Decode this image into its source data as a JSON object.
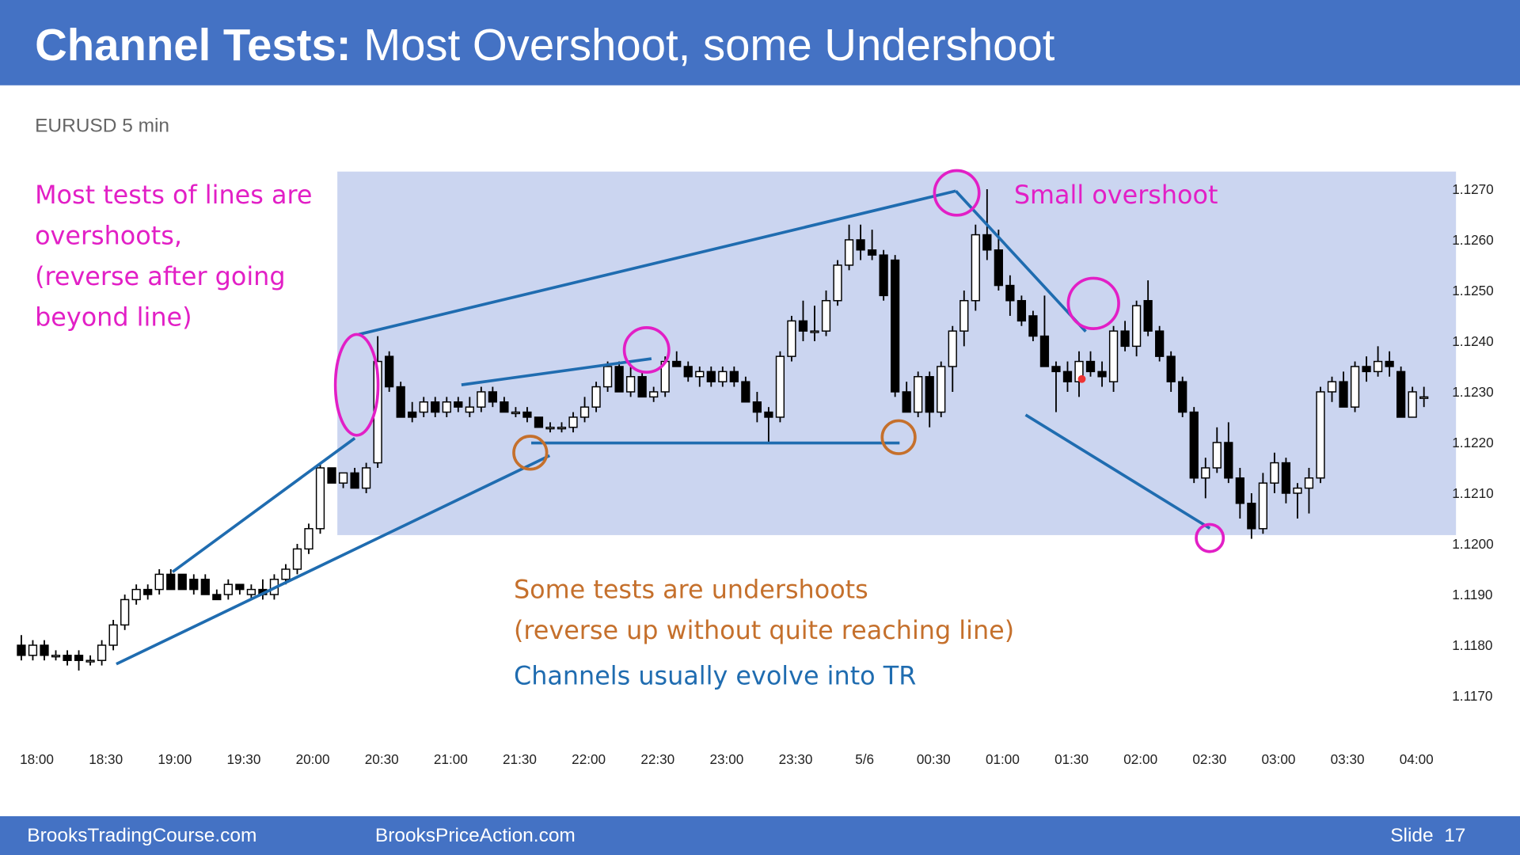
{
  "slide": {
    "title_bold": "Channel Tests:",
    "title_rest": "Most Overshoot, some Undershoot",
    "footer_left": "BrooksTradingCourse.com",
    "footer_mid": "BrooksPriceAction.com",
    "slide_label": "Slide  17"
  },
  "chart_data": {
    "type": "candlestick",
    "subtitle": "EURUSD 5 min",
    "annotations": [
      "Most tests of lines are",
      "overshoots,",
      "(reverse after going",
      "beyond line)",
      "Small overshoot",
      "Some tests are undershoots",
      "(reverse up without quite reaching line)",
      "Channels usually evolve into TR"
    ],
    "up_color": "#ffffff",
    "down_color": "#000000",
    "grid": false,
    "ylim": [
      1.1165,
      1.1275
    ],
    "yticks": [
      {
        "value": 1.117,
        "label": "1.1170"
      },
      {
        "value": 1.118,
        "label": "1.1180"
      },
      {
        "value": 1.119,
        "label": "1.1190"
      },
      {
        "value": 1.12,
        "label": "1.1200"
      },
      {
        "value": 1.121,
        "label": "1.1210"
      },
      {
        "value": 1.122,
        "label": "1.1220"
      },
      {
        "value": 1.123,
        "label": "1.1230"
      },
      {
        "value": 1.124,
        "label": "1.1240"
      },
      {
        "value": 1.125,
        "label": "1.1250"
      },
      {
        "value": 1.126,
        "label": "1.1260"
      },
      {
        "value": 1.127,
        "label": "1.1270"
      }
    ],
    "x": [
      "18:00",
      null,
      null,
      null,
      null,
      null,
      "18:30",
      null,
      null,
      null,
      null,
      null,
      "19:00",
      null,
      null,
      null,
      null,
      null,
      "19:30",
      null,
      null,
      null,
      null,
      null,
      "20:00",
      null,
      null,
      null,
      null,
      null,
      "20:30",
      null,
      null,
      null,
      null,
      null,
      "21:00",
      null,
      null,
      null,
      null,
      null,
      "21:30",
      null,
      null,
      null,
      null,
      null,
      "22:00",
      null,
      null,
      null,
      null,
      null,
      "22:30",
      null,
      null,
      null,
      null,
      null,
      "23:00",
      null,
      null,
      null,
      null,
      null,
      "23:30",
      null,
      null,
      null,
      null,
      null,
      "5/6",
      null,
      null,
      null,
      null,
      null,
      "00:30",
      null,
      null,
      null,
      null,
      null,
      "01:00",
      null,
      null,
      null,
      null,
      null,
      "01:30",
      null,
      null,
      null,
      null,
      null,
      "02:00",
      null,
      null,
      null,
      null,
      null,
      "02:30",
      null,
      null,
      null,
      null,
      null,
      "03:00",
      null,
      null,
      null,
      null,
      null,
      "03:30",
      null,
      null,
      null,
      null,
      null,
      "04:00",
      null,
      null
    ],
    "ohlc": [
      [
        1.118,
        1.1182,
        1.1177,
        1.1178
      ],
      [
        1.1178,
        1.1181,
        1.1177,
        1.118
      ],
      [
        1.118,
        1.1181,
        1.1177,
        1.1178
      ],
      [
        1.1178,
        1.1179,
        1.1177,
        1.1178
      ],
      [
        1.1178,
        1.1179,
        1.1176,
        1.1177
      ],
      [
        1.1178,
        1.1179,
        1.1175,
        1.1177
      ],
      [
        1.1177,
        1.1178,
        1.1176,
        1.1177
      ],
      [
        1.1177,
        1.1181,
        1.1176,
        1.118
      ],
      [
        1.118,
        1.1185,
        1.1179,
        1.1184
      ],
      [
        1.1184,
        1.119,
        1.1183,
        1.1189
      ],
      [
        1.1189,
        1.1192,
        1.1188,
        1.1191
      ],
      [
        1.1191,
        1.1192,
        1.1189,
        1.119
      ],
      [
        1.1191,
        1.1195,
        1.119,
        1.1194
      ],
      [
        1.1194,
        1.1195,
        1.1191,
        1.1191
      ],
      [
        1.1194,
        1.1194,
        1.1191,
        1.1191
      ],
      [
        1.1193,
        1.1194,
        1.119,
        1.1191
      ],
      [
        1.1193,
        1.1194,
        1.119,
        1.119
      ],
      [
        1.119,
        1.1191,
        1.1189,
        1.1189
      ],
      [
        1.119,
        1.1193,
        1.1189,
        1.1192
      ],
      [
        1.1192,
        1.1192,
        1.119,
        1.1191
      ],
      [
        1.119,
        1.1192,
        1.1189,
        1.1191
      ],
      [
        1.1191,
        1.1193,
        1.1189,
        1.119
      ],
      [
        1.119,
        1.1194,
        1.1189,
        1.1193
      ],
      [
        1.1193,
        1.1196,
        1.1192,
        1.1195
      ],
      [
        1.1195,
        1.12,
        1.1194,
        1.1199
      ],
      [
        1.1199,
        1.1204,
        1.1198,
        1.1203
      ],
      [
        1.1203,
        1.1216,
        1.1202,
        1.1215
      ],
      [
        1.1215,
        1.1215,
        1.1212,
        1.1212
      ],
      [
        1.1212,
        1.1214,
        1.1211,
        1.1214
      ],
      [
        1.1214,
        1.1215,
        1.1211,
        1.1211
      ],
      [
        1.1211,
        1.1216,
        1.121,
        1.1215
      ],
      [
        1.1216,
        1.1241,
        1.1215,
        1.1236
      ],
      [
        1.1237,
        1.1238,
        1.123,
        1.1231
      ],
      [
        1.1231,
        1.1232,
        1.1225,
        1.1225
      ],
      [
        1.1226,
        1.1228,
        1.1224,
        1.1225
      ],
      [
        1.1226,
        1.1229,
        1.1225,
        1.1228
      ],
      [
        1.1228,
        1.1229,
        1.1225,
        1.1226
      ],
      [
        1.1226,
        1.1229,
        1.1225,
        1.1228
      ],
      [
        1.1228,
        1.1229,
        1.1226,
        1.1227
      ],
      [
        1.1226,
        1.1229,
        1.1225,
        1.1227
      ],
      [
        1.1227,
        1.1231,
        1.1226,
        1.123
      ],
      [
        1.123,
        1.1231,
        1.1227,
        1.1228
      ],
      [
        1.1228,
        1.1229,
        1.1226,
        1.1226
      ],
      [
        1.1226,
        1.1227,
        1.1225,
        1.1226
      ],
      [
        1.1226,
        1.1227,
        1.1224,
        1.1225
      ],
      [
        1.1225,
        1.1225,
        1.1223,
        1.1223
      ],
      [
        1.1223,
        1.1224,
        1.1222,
        1.1223
      ],
      [
        1.1223,
        1.1224,
        1.1222,
        1.1223
      ],
      [
        1.1223,
        1.1226,
        1.1222,
        1.1225
      ],
      [
        1.1225,
        1.1229,
        1.1224,
        1.1227
      ],
      [
        1.1227,
        1.1232,
        1.1226,
        1.1231
      ],
      [
        1.1231,
        1.1236,
        1.123,
        1.1235
      ],
      [
        1.1235,
        1.1236,
        1.123,
        1.123
      ],
      [
        1.123,
        1.1235,
        1.1229,
        1.1233
      ],
      [
        1.1233,
        1.1234,
        1.1229,
        1.1229
      ],
      [
        1.1229,
        1.1231,
        1.1228,
        1.123
      ],
      [
        1.123,
        1.1237,
        1.1229,
        1.1236
      ],
      [
        1.1236,
        1.1238,
        1.1235,
        1.1235
      ],
      [
        1.1235,
        1.1236,
        1.1232,
        1.1233
      ],
      [
        1.1233,
        1.1235,
        1.1231,
        1.1234
      ],
      [
        1.1234,
        1.1235,
        1.1231,
        1.1232
      ],
      [
        1.1232,
        1.1235,
        1.1231,
        1.1234
      ],
      [
        1.1234,
        1.1235,
        1.1231,
        1.1232
      ],
      [
        1.1232,
        1.1233,
        1.1228,
        1.1228
      ],
      [
        1.1228,
        1.123,
        1.1224,
        1.1226
      ],
      [
        1.1226,
        1.1227,
        1.122,
        1.1225
      ],
      [
        1.1225,
        1.1238,
        1.1224,
        1.1237
      ],
      [
        1.1237,
        1.1245,
        1.1236,
        1.1244
      ],
      [
        1.1244,
        1.1248,
        1.124,
        1.1242
      ],
      [
        1.1242,
        1.1247,
        1.124,
        1.1242
      ],
      [
        1.1242,
        1.125,
        1.1241,
        1.1248
      ],
      [
        1.1248,
        1.1256,
        1.1247,
        1.1255
      ],
      [
        1.1255,
        1.1263,
        1.1254,
        1.126
      ],
      [
        1.126,
        1.1263,
        1.1256,
        1.1258
      ],
      [
        1.1258,
        1.1262,
        1.1256,
        1.1257
      ],
      [
        1.1257,
        1.1258,
        1.1248,
        1.1249
      ],
      [
        1.1256,
        1.1257,
        1.1229,
        1.123
      ],
      [
        1.123,
        1.1232,
        1.1226,
        1.1226
      ],
      [
        1.1226,
        1.1234,
        1.1225,
        1.1233
      ],
      [
        1.1233,
        1.1234,
        1.1223,
        1.1226
      ],
      [
        1.1226,
        1.1236,
        1.1225,
        1.1235
      ],
      [
        1.1235,
        1.1243,
        1.123,
        1.1242
      ],
      [
        1.1242,
        1.125,
        1.1239,
        1.1248
      ],
      [
        1.1248,
        1.1263,
        1.1246,
        1.1261
      ],
      [
        1.1261,
        1.127,
        1.1256,
        1.1258
      ],
      [
        1.1258,
        1.1262,
        1.125,
        1.1251
      ],
      [
        1.1251,
        1.1253,
        1.1245,
        1.1248
      ],
      [
        1.1248,
        1.1249,
        1.1243,
        1.1244
      ],
      [
        1.1245,
        1.1246,
        1.124,
        1.1241
      ],
      [
        1.1241,
        1.1249,
        1.1235,
        1.1235
      ],
      [
        1.1235,
        1.1236,
        1.1226,
        1.1234
      ],
      [
        1.1234,
        1.1236,
        1.123,
        1.1232
      ],
      [
        1.1232,
        1.1238,
        1.1229,
        1.1236
      ],
      [
        1.1236,
        1.1238,
        1.1233,
        1.1234
      ],
      [
        1.1234,
        1.1236,
        1.1231,
        1.1233
      ],
      [
        1.1232,
        1.1243,
        1.123,
        1.1242
      ],
      [
        1.1242,
        1.1244,
        1.1238,
        1.1239
      ],
      [
        1.1239,
        1.1248,
        1.1237,
        1.1247
      ],
      [
        1.1248,
        1.1252,
        1.1241,
        1.1242
      ],
      [
        1.1242,
        1.1243,
        1.1236,
        1.1237
      ],
      [
        1.1237,
        1.1238,
        1.123,
        1.1232
      ],
      [
        1.1232,
        1.1233,
        1.1225,
        1.1226
      ],
      [
        1.1226,
        1.1227,
        1.1212,
        1.1213
      ],
      [
        1.1213,
        1.1217,
        1.1209,
        1.1215
      ],
      [
        1.1215,
        1.1223,
        1.1214,
        1.122
      ],
      [
        1.122,
        1.1224,
        1.1212,
        1.1213
      ],
      [
        1.1213,
        1.1215,
        1.1205,
        1.1208
      ],
      [
        1.1208,
        1.121,
        1.1201,
        1.1203
      ],
      [
        1.1203,
        1.1214,
        1.1202,
        1.1212
      ],
      [
        1.1212,
        1.1218,
        1.121,
        1.1216
      ],
      [
        1.1216,
        1.1217,
        1.1208,
        1.121
      ],
      [
        1.121,
        1.1212,
        1.1205,
        1.1211
      ],
      [
        1.1211,
        1.1215,
        1.1206,
        1.1213
      ],
      [
        1.1213,
        1.1231,
        1.1212,
        1.123
      ],
      [
        1.123,
        1.1233,
        1.1228,
        1.1232
      ],
      [
        1.1232,
        1.1234,
        1.1227,
        1.1227
      ],
      [
        1.1227,
        1.1236,
        1.1226,
        1.1235
      ],
      [
        1.1235,
        1.1237,
        1.1232,
        1.1234
      ],
      [
        1.1234,
        1.1239,
        1.1233,
        1.1236
      ],
      [
        1.1236,
        1.1238,
        1.1233,
        1.1235
      ],
      [
        1.1234,
        1.1235,
        1.1225,
        1.1225
      ],
      [
        1.1225,
        1.1231,
        1.1225,
        1.123
      ],
      [
        1.1229,
        1.1231,
        1.1227,
        1.1229
      ]
    ]
  }
}
